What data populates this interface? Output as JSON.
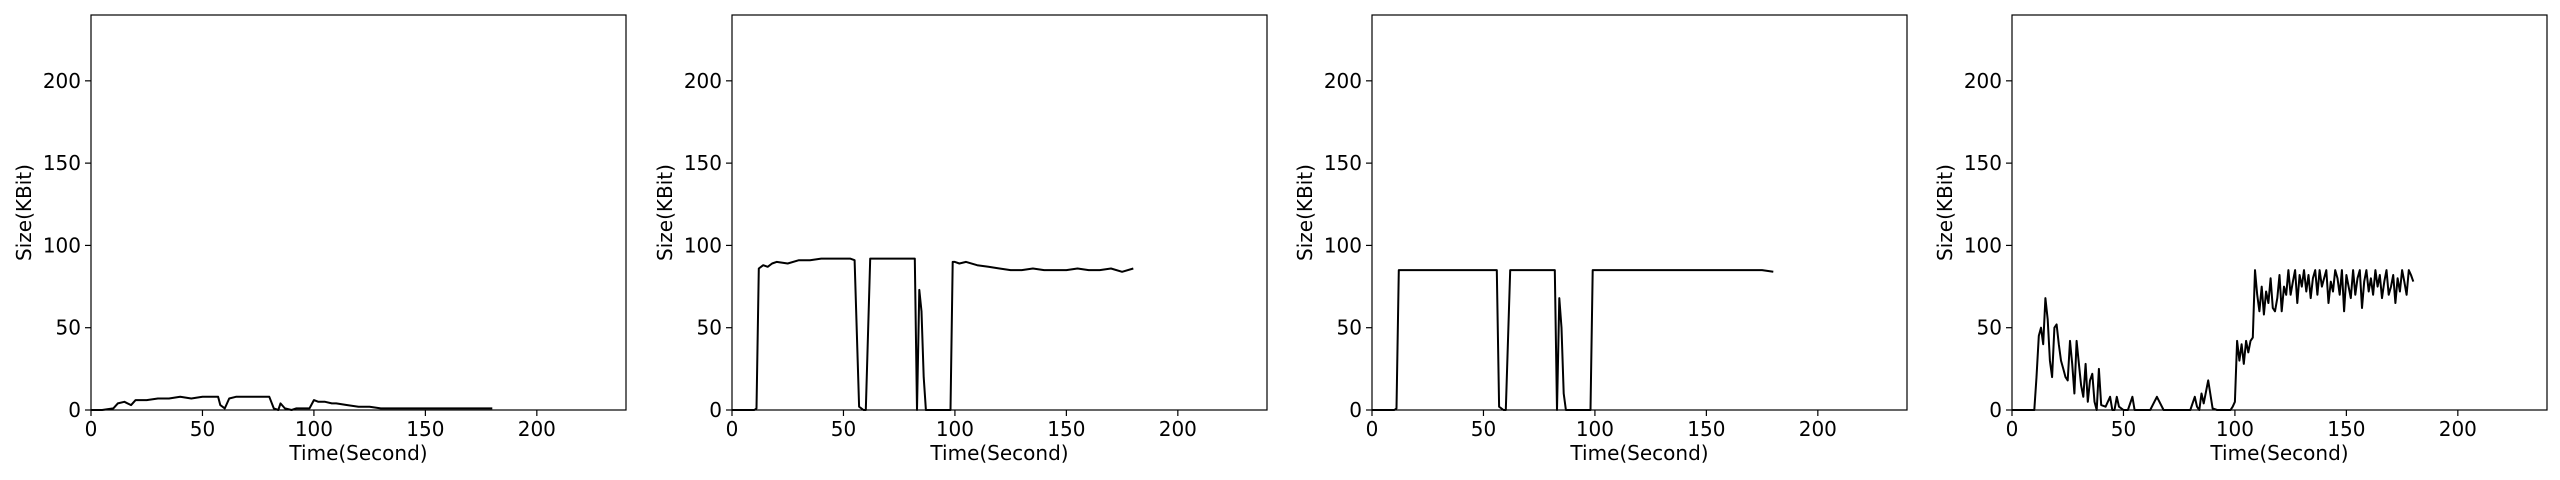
{
  "chart_data": [
    {
      "type": "line",
      "xlabel": "Time(Second)",
      "ylabel": "Size(KBit)",
      "xlim": [
        0,
        240
      ],
      "ylim": [
        0,
        240
      ],
      "xticks": [
        0,
        50,
        100,
        150,
        200
      ],
      "yticks": [
        0,
        50,
        100,
        150,
        200
      ],
      "grid": false,
      "series": [
        {
          "x": [
            0,
            5,
            10,
            12,
            15,
            18,
            20,
            25,
            30,
            35,
            40,
            45,
            50,
            52,
            55,
            57,
            58,
            60,
            62,
            65,
            70,
            75,
            78,
            80,
            82,
            84,
            85,
            87,
            90,
            92,
            95,
            98,
            100,
            102,
            105,
            108,
            110,
            115,
            120,
            125,
            130,
            135,
            140,
            145,
            150,
            155,
            160,
            165,
            170,
            175,
            180
          ],
          "y": [
            0,
            0,
            1,
            4,
            5,
            3,
            6,
            6,
            7,
            7,
            8,
            7,
            8,
            8,
            8,
            8,
            3,
            1,
            7,
            8,
            8,
            8,
            8,
            8,
            1,
            0,
            4,
            1,
            0,
            1,
            1,
            1,
            6,
            5,
            5,
            4,
            4,
            3,
            2,
            2,
            1,
            1,
            1,
            1,
            1,
            1,
            1,
            1,
            1,
            1,
            1
          ]
        }
      ]
    },
    {
      "type": "line",
      "xlabel": "Time(Second)",
      "ylabel": "Size(KBit)",
      "xlim": [
        0,
        240
      ],
      "ylim": [
        0,
        240
      ],
      "xticks": [
        0,
        50,
        100,
        150,
        200
      ],
      "yticks": [
        0,
        50,
        100,
        150,
        200
      ],
      "grid": false,
      "series": [
        {
          "x": [
            0,
            10,
            11,
            12,
            14,
            16,
            18,
            20,
            25,
            30,
            35,
            40,
            45,
            50,
            53,
            55,
            57,
            59,
            60,
            62,
            65,
            70,
            75,
            80,
            82,
            83,
            84,
            85,
            86,
            87,
            88,
            90,
            92,
            95,
            98,
            99,
            100,
            102,
            105,
            110,
            115,
            120,
            125,
            130,
            135,
            140,
            145,
            150,
            155,
            160,
            165,
            170,
            175,
            180
          ],
          "y": [
            0,
            0,
            1,
            86,
            88,
            87,
            89,
            90,
            89,
            91,
            91,
            92,
            92,
            92,
            92,
            91,
            2,
            0,
            0,
            92,
            92,
            92,
            92,
            92,
            92,
            0,
            73,
            60,
            20,
            0,
            0,
            0,
            0,
            0,
            0,
            90,
            90,
            89,
            90,
            88,
            87,
            86,
            85,
            85,
            86,
            85,
            85,
            85,
            86,
            85,
            85,
            86,
            84,
            86
          ]
        }
      ]
    },
    {
      "type": "line",
      "xlabel": "Time(Second)",
      "ylabel": "Size(KBit)",
      "xlim": [
        0,
        240
      ],
      "ylim": [
        0,
        240
      ],
      "xticks": [
        0,
        50,
        100,
        150,
        200
      ],
      "yticks": [
        0,
        50,
        100,
        150,
        200
      ],
      "grid": false,
      "series": [
        {
          "x": [
            0,
            10,
            11,
            12,
            15,
            20,
            25,
            30,
            35,
            40,
            45,
            50,
            55,
            56,
            57,
            59,
            60,
            62,
            65,
            70,
            75,
            80,
            82,
            83,
            84,
            85,
            86,
            87,
            88,
            90,
            92,
            95,
            98,
            99,
            100,
            105,
            110,
            115,
            120,
            125,
            130,
            135,
            140,
            145,
            150,
            155,
            160,
            165,
            170,
            175,
            180
          ],
          "y": [
            0,
            0,
            1,
            85,
            85,
            85,
            85,
            85,
            85,
            85,
            85,
            85,
            85,
            85,
            2,
            0,
            0,
            85,
            85,
            85,
            85,
            85,
            85,
            0,
            68,
            50,
            10,
            0,
            0,
            0,
            0,
            0,
            0,
            85,
            85,
            85,
            85,
            85,
            85,
            85,
            85,
            85,
            85,
            85,
            85,
            85,
            85,
            85,
            85,
            85,
            84
          ]
        }
      ]
    },
    {
      "type": "line",
      "xlabel": "Time(Second)",
      "ylabel": "Size(KBit)",
      "xlim": [
        0,
        240
      ],
      "ylim": [
        0,
        240
      ],
      "xticks": [
        0,
        50,
        100,
        150,
        200
      ],
      "yticks": [
        0,
        50,
        100,
        150,
        200
      ],
      "grid": false,
      "series": [
        {
          "x": [
            0,
            5,
            8,
            10,
            11,
            12,
            13,
            14,
            15,
            16,
            17,
            18,
            19,
            20,
            21,
            22,
            23,
            24,
            25,
            26,
            27,
            28,
            29,
            30,
            31,
            32,
            33,
            34,
            35,
            36,
            37,
            38,
            39,
            40,
            42,
            44,
            45,
            46,
            47,
            48,
            50,
            52,
            54,
            55,
            58,
            60,
            62,
            65,
            68,
            70,
            72,
            75,
            78,
            80,
            82,
            83,
            84,
            85,
            86,
            88,
            90,
            92,
            94,
            95,
            96,
            97,
            98,
            99,
            100,
            101,
            102,
            103,
            104,
            105,
            106,
            107,
            108,
            109,
            110,
            111,
            112,
            113,
            114,
            115,
            116,
            117,
            118,
            119,
            120,
            121,
            122,
            123,
            124,
            125,
            126,
            127,
            128,
            129,
            130,
            131,
            132,
            133,
            134,
            135,
            136,
            137,
            138,
            139,
            140,
            141,
            142,
            143,
            144,
            145,
            146,
            147,
            148,
            149,
            150,
            151,
            152,
            153,
            154,
            155,
            156,
            157,
            158,
            159,
            160,
            161,
            162,
            163,
            164,
            165,
            166,
            167,
            168,
            169,
            170,
            171,
            172,
            173,
            174,
            175,
            176,
            177,
            178,
            179,
            180
          ],
          "y": [
            0,
            0,
            0,
            0,
            20,
            45,
            50,
            40,
            68,
            55,
            30,
            20,
            50,
            52,
            40,
            30,
            25,
            20,
            18,
            42,
            28,
            10,
            42,
            28,
            15,
            8,
            28,
            5,
            18,
            22,
            5,
            0,
            25,
            3,
            2,
            8,
            0,
            0,
            8,
            2,
            0,
            0,
            8,
            0,
            0,
            0,
            0,
            8,
            0,
            0,
            0,
            0,
            0,
            0,
            8,
            2,
            0,
            10,
            4,
            18,
            1,
            0,
            0,
            0,
            0,
            0,
            0,
            2,
            5,
            42,
            30,
            40,
            28,
            42,
            35,
            42,
            44,
            85,
            70,
            60,
            75,
            58,
            72,
            65,
            80,
            62,
            60,
            68,
            82,
            60,
            75,
            70,
            85,
            70,
            78,
            85,
            65,
            82,
            75,
            85,
            72,
            82,
            68,
            80,
            85,
            70,
            85,
            75,
            80,
            85,
            65,
            78,
            72,
            85,
            80,
            70,
            85,
            60,
            82,
            75,
            68,
            85,
            70,
            80,
            85,
            62,
            78,
            85,
            72,
            80,
            70,
            85,
            75,
            82,
            68,
            78,
            85,
            70,
            75,
            82,
            65,
            80,
            72,
            85,
            78,
            70,
            85,
            82,
            78
          ]
        }
      ]
    }
  ]
}
